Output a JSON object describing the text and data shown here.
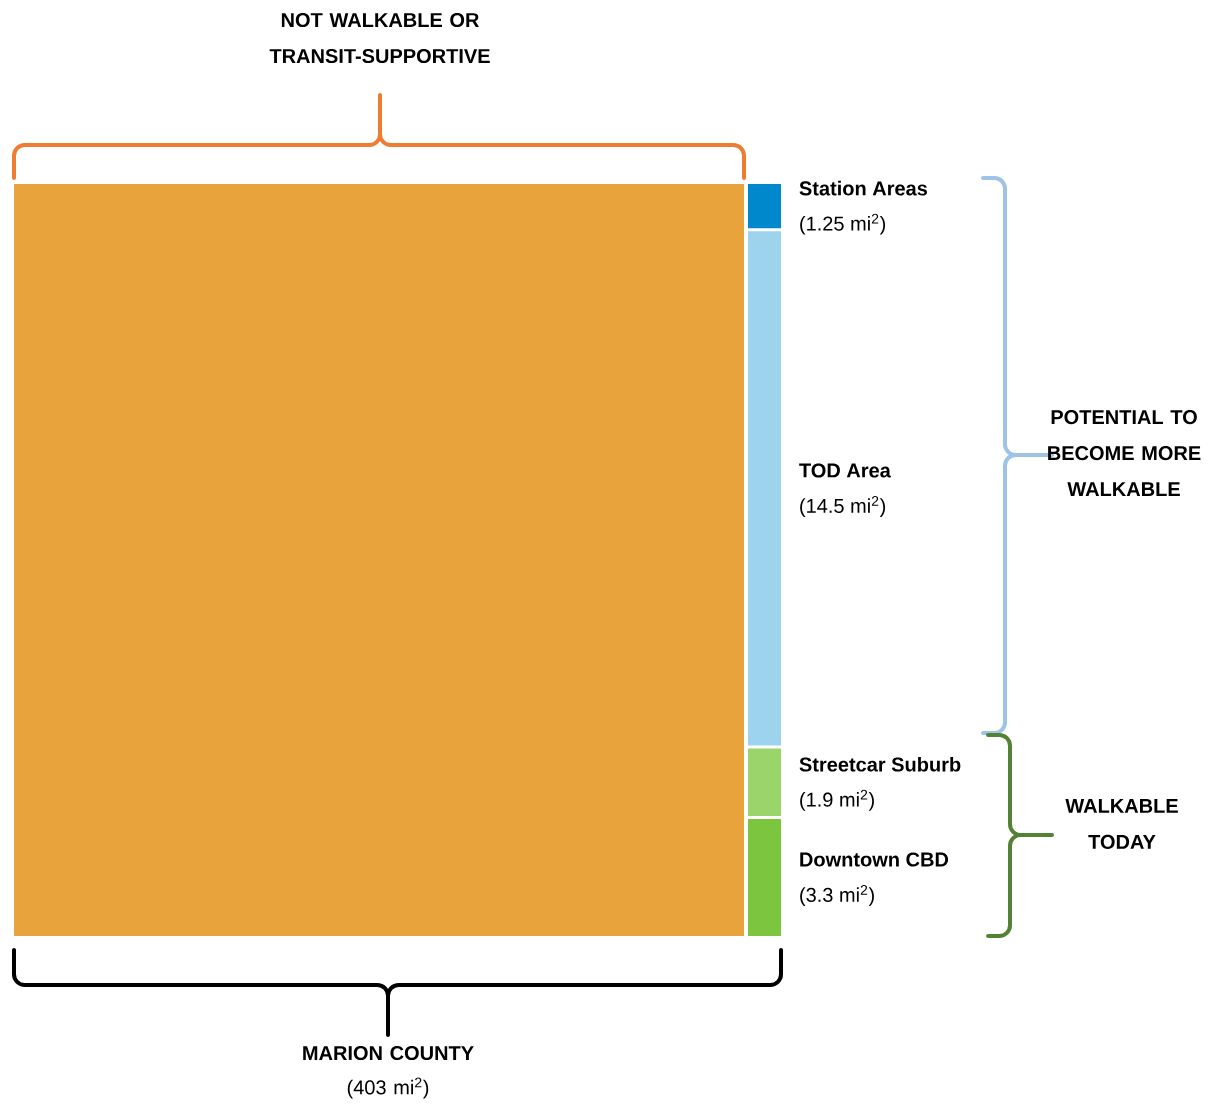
{
  "chart_data": {
    "type": "other",
    "categories": [
      null,
      "Station Areas",
      "TOD Area",
      "Streetcar Suburb",
      "Downtown CBD"
    ],
    "values": [
      null,
      1.25,
      14.5,
      1.9,
      3.3
    ],
    "value_labels": [
      null,
      "(1.25 mi$^{2}$)",
      "(14.5 mi$^{2}$)",
      "(1.9 mi$^{2}$)",
      "(3.3 mi$^{2}$)"
    ],
    "colors": [
      "#e8a33d",
      "#0088cc",
      "#9dd3ec",
      "#9bd46a",
      "#7cc63f"
    ],
    "annotations": [
      "NOT WALKABLE OR TRANSIT-SUPPORTIVE",
      "POTENTIAL TO BECOME MORE WALKABLE",
      "WALKABLE TODAY",
      "MARION COUNTY",
      "(403 mi$^{2}$)"
    ]
  }
}
